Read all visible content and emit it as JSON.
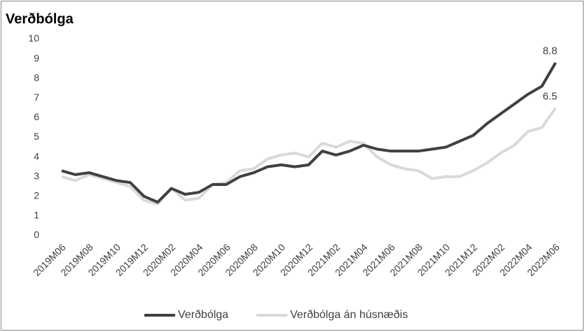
{
  "chart_data": {
    "type": "line",
    "title": "Verðbólga",
    "categories": [
      "2019M06",
      null,
      "2019M08",
      null,
      "2019M10",
      null,
      "2019M12",
      null,
      "2020M02",
      null,
      "2020M04",
      null,
      "2020M06",
      null,
      "2020M08",
      null,
      "2020M10",
      null,
      "2020M12",
      null,
      "2021M02",
      null,
      "2021M04",
      null,
      "2021M06",
      null,
      "2021M08",
      null,
      "2021M10",
      null,
      "2021M12",
      null,
      "2022M02",
      null,
      "2022M04",
      null,
      "2022M06"
    ],
    "series": [
      {
        "name": "Verðbólga",
        "color": "#404040",
        "values": [
          3.3,
          3.1,
          3.2,
          3.0,
          2.8,
          2.7,
          2.0,
          1.7,
          2.4,
          2.1,
          2.2,
          2.6,
          2.6,
          3.0,
          3.2,
          3.5,
          3.6,
          3.5,
          3.6,
          4.3,
          4.1,
          4.3,
          4.6,
          4.4,
          4.3,
          4.3,
          4.3,
          4.4,
          4.5,
          4.8,
          5.1,
          5.7,
          6.2,
          6.7,
          7.2,
          7.6,
          8.8
        ]
      },
      {
        "name": "Verðbólga án húsnæðis",
        "color": "#d9d9d9",
        "values": [
          3.0,
          2.8,
          3.1,
          2.9,
          2.7,
          2.5,
          1.8,
          1.6,
          2.4,
          1.8,
          1.9,
          2.6,
          2.7,
          3.3,
          3.4,
          3.9,
          4.1,
          4.2,
          4.0,
          4.7,
          4.5,
          4.8,
          4.7,
          4.0,
          3.6,
          3.4,
          3.3,
          2.9,
          3.0,
          3.0,
          3.3,
          3.7,
          4.2,
          4.6,
          5.3,
          5.5,
          6.5
        ]
      }
    ],
    "ylim": [
      0,
      10
    ],
    "yticks": [
      0,
      1,
      2,
      3,
      4,
      5,
      6,
      7,
      8,
      9,
      10
    ],
    "grid": false,
    "legend": "bottom"
  }
}
